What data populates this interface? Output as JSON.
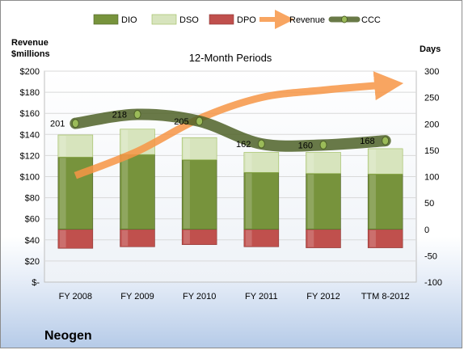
{
  "company": "Neogen",
  "chart_data": {
    "type": "bar",
    "title": "12-Month Periods",
    "left_axis": {
      "label": [
        "Revenue",
        "$millions"
      ],
      "ticks": [
        "$-",
        "$20",
        "$40",
        "$60",
        "$80",
        "$100",
        "$120",
        "$140",
        "$160",
        "$180",
        "$200"
      ],
      "ylim": [
        0,
        200
      ]
    },
    "right_axis": {
      "label": "Days",
      "ticks": [
        "-100",
        "-50",
        "0",
        "50",
        "100",
        "150",
        "200",
        "250",
        "300"
      ],
      "ylim": [
        -100,
        300
      ]
    },
    "categories": [
      "FY 2008",
      "FY 2009",
      "FY 2010",
      "FY 2011",
      "FY 2012",
      "TTM 8-2012"
    ],
    "legend": {
      "position": "top",
      "entries": [
        "DIO",
        "DSO",
        "DPO",
        "Revenue",
        "CCC"
      ]
    },
    "series": [
      {
        "name": "DIO",
        "type": "stacked-bar",
        "axis": "right",
        "values": [
          137,
          142,
          132,
          108,
          106,
          105
        ],
        "color": "#77933c"
      },
      {
        "name": "DSO",
        "type": "stacked-bar",
        "axis": "right",
        "values": [
          42,
          48,
          42,
          38,
          40,
          48
        ],
        "color": "#d7e4bd"
      },
      {
        "name": "DPO",
        "type": "bar-below-zero",
        "axis": "right",
        "values": [
          -36,
          -33,
          -29,
          -33,
          -35,
          -35
        ],
        "color": "#c0504d"
      },
      {
        "name": "Revenue",
        "type": "arrow",
        "axis": "left",
        "values": [
          101,
          124,
          155,
          175,
          182,
          187
        ],
        "color": "#f79646"
      },
      {
        "name": "CCC",
        "type": "line",
        "axis": "right",
        "values": [
          201,
          218,
          205,
          162,
          160,
          168
        ],
        "labels": [
          "201",
          "218",
          "205",
          "162",
          "160",
          "168"
        ],
        "color": "#4f6228"
      }
    ],
    "grid": true
  }
}
